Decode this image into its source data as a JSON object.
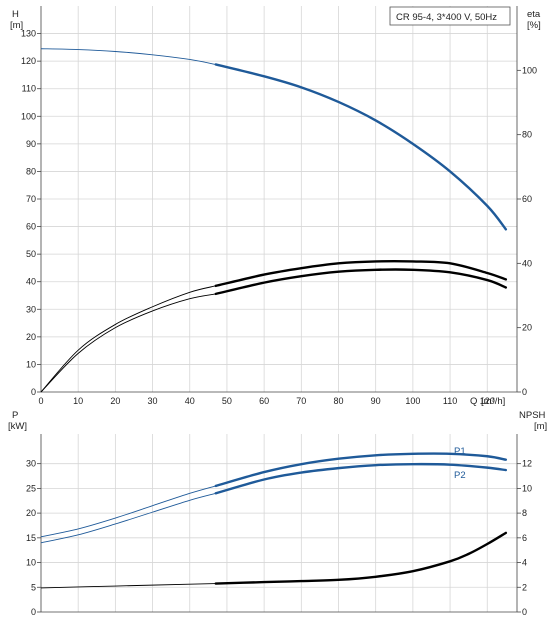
{
  "chart_data": [
    {
      "type": "line",
      "title": "CR 95-4, 3*400 V, 50Hz",
      "ylabel_left": "H",
      "ylabel_left_unit": "[m]",
      "ylabel_right": "eta",
      "ylabel_right_unit": "[%]",
      "xlabel": "Q",
      "xlabel_unit": "[m³/h]",
      "xlim": [
        0,
        128
      ],
      "ylim": [
        0,
        140
      ],
      "eta_lim": [
        0,
        120
      ],
      "x_ticks": [
        0,
        10,
        20,
        30,
        40,
        50,
        60,
        70,
        80,
        90,
        100,
        110,
        120
      ],
      "y_ticks": [
        0,
        10,
        20,
        30,
        40,
        50,
        60,
        70,
        80,
        90,
        100,
        110,
        120,
        130
      ],
      "eta_ticks": [
        0,
        20,
        40,
        60,
        80,
        100
      ],
      "grid": true,
      "series": [
        {
          "name": "H",
          "color": "#1f5a99",
          "duty_from": 47,
          "x": [
            0,
            10,
            20,
            30,
            40,
            47,
            60,
            70,
            80,
            90,
            100,
            110,
            120,
            125
          ],
          "y": [
            124.5,
            124.2,
            123.5,
            122.3,
            120.6,
            118.8,
            114.5,
            110.5,
            105.2,
            98.5,
            90,
            80,
            67.5,
            59
          ]
        },
        {
          "name": "eta",
          "color": "#000000",
          "duty_from": 47,
          "x": [
            0,
            10,
            20,
            30,
            40,
            47,
            60,
            70,
            80,
            90,
            100,
            110,
            120,
            125
          ],
          "y": [
            0,
            13,
            21,
            26.5,
            31,
            33,
            36.5,
            38.5,
            40,
            40.6,
            40.6,
            40,
            37,
            35
          ]
        },
        {
          "name": "eta2",
          "color": "#000000",
          "duty_from": 47,
          "x": [
            0,
            10,
            20,
            30,
            40,
            47,
            60,
            70,
            80,
            90,
            100,
            110,
            120,
            125
          ],
          "y": [
            0,
            12,
            20,
            25.2,
            29,
            30.5,
            34,
            36,
            37.4,
            38,
            38,
            37.2,
            34.8,
            32.5
          ]
        }
      ]
    },
    {
      "type": "line",
      "ylabel_left": "P",
      "ylabel_left_unit": "[kW]",
      "ylabel_right": "NPSH",
      "ylabel_right_unit": "[m]",
      "xlim": [
        0,
        128
      ],
      "ylim": [
        0,
        36
      ],
      "npsh_lim": [
        0,
        14.4
      ],
      "p_ticks": [
        0,
        5,
        10,
        15,
        20,
        25,
        30
      ],
      "npsh_ticks": [
        0,
        2,
        4,
        6,
        8,
        10,
        12
      ],
      "grid": true,
      "series": [
        {
          "name": "P1",
          "color": "#1f5a99",
          "duty_from": 47,
          "x": [
            0,
            10,
            20,
            30,
            40,
            47,
            60,
            70,
            80,
            90,
            100,
            110,
            120,
            125
          ],
          "y": [
            15.2,
            16.8,
            19,
            21.5,
            24,
            25.5,
            28.3,
            29.9,
            31,
            31.7,
            32,
            32,
            31.5,
            30.8
          ]
        },
        {
          "name": "P2",
          "color": "#1f5a99",
          "duty_from": 47,
          "x": [
            0,
            10,
            20,
            30,
            40,
            47,
            60,
            70,
            80,
            90,
            100,
            110,
            120,
            125
          ],
          "y": [
            14,
            15.6,
            17.8,
            20.2,
            22.6,
            24,
            26.8,
            28.2,
            29.1,
            29.7,
            29.9,
            29.8,
            29.2,
            28.7
          ]
        },
        {
          "name": "NPSH",
          "color": "#000000",
          "duty_from": 47,
          "x": [
            0,
            20,
            40,
            47,
            60,
            70,
            80,
            90,
            100,
            110,
            115,
            120,
            125
          ],
          "y": [
            1.95,
            2.1,
            2.25,
            2.3,
            2.42,
            2.5,
            2.6,
            2.85,
            3.3,
            4.1,
            4.7,
            5.5,
            6.4
          ]
        }
      ]
    }
  ]
}
